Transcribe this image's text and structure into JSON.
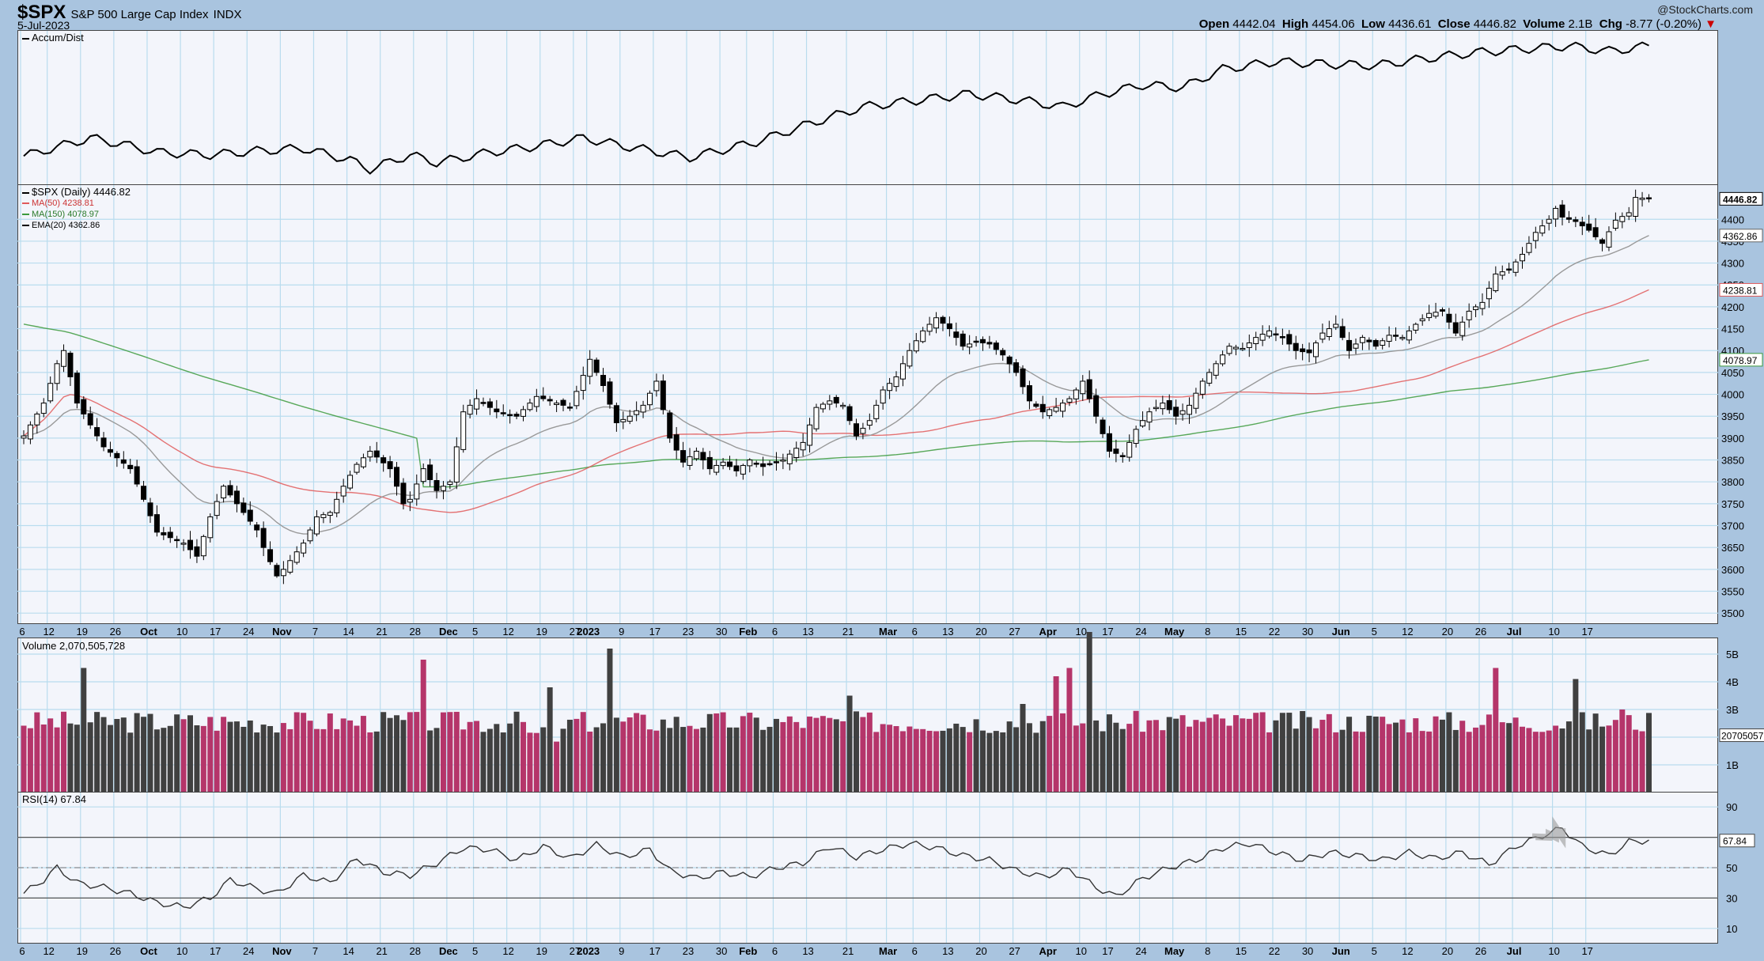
{
  "header": {
    "symbol": "$SPX",
    "name": "S&P 500 Large Cap Index",
    "exchange": "INDX",
    "date": "5-Jul-2023",
    "credit": "@StockCharts.com",
    "open_label": "Open",
    "open": "4442.04",
    "high_label": "High",
    "high": "4454.06",
    "low_label": "Low",
    "low": "4436.61",
    "close_label": "Close",
    "close": "4446.82",
    "volume_label": "Volume",
    "volume": "2.1B",
    "chg_label": "Chg",
    "chg": "-8.77 (-0.20%)",
    "chg_arrow": "▼"
  },
  "legends": {
    "accum": "Accum/Dist",
    "price": "$SPX (Daily) 4446.82",
    "ma50": "MA(50) 4238.81",
    "ma150": "MA(150) 4078.97",
    "ema20": "EMA(20) 4362.86",
    "volume": "Volume 2,070,505,728",
    "rsi": "RSI(14) 67.84"
  },
  "colors": {
    "background": "#a9c4df",
    "panel": "#f3f5fb",
    "grid": "#b9dcee",
    "up_volume": "#b5356a",
    "down_volume": "#404040",
    "ma50": "#e05a5a",
    "ma150": "#3c9a3c",
    "ema20": "#999999"
  },
  "chart_data": {
    "type": "candlestick",
    "symbol": "$SPX",
    "period": "Daily",
    "date_range": [
      "2022-09-06",
      "2023-07-05"
    ],
    "x_ticks": [
      "6",
      "12",
      "19",
      "26",
      "Oct",
      "10",
      "17",
      "24",
      "Nov",
      "7",
      "14",
      "21",
      "28",
      "Dec",
      "5",
      "12",
      "19",
      "27",
      "2023",
      "9",
      "17",
      "23",
      "30",
      "Feb",
      "6",
      "13",
      "21",
      "Mar",
      "6",
      "13",
      "20",
      "27",
      "Apr",
      "10",
      "17",
      "24",
      "May",
      "8",
      "15",
      "22",
      "30",
      "Jun",
      "5",
      "12",
      "20",
      "26",
      "Jul",
      "10",
      "17"
    ],
    "price_axis": {
      "ylim": [
        3475,
        4480
      ],
      "ticks": [
        3500,
        3550,
        3600,
        3650,
        3700,
        3750,
        3800,
        3850,
        3900,
        3950,
        4000,
        4050,
        4100,
        4150,
        4200,
        4250,
        4300,
        4350,
        4400
      ]
    },
    "price_axis_flags": [
      "4446.82",
      "4362.86",
      "4238.81",
      "4078.97"
    ],
    "close_anchors": [
      [
        0,
        3905
      ],
      [
        3,
        3980
      ],
      [
        5,
        4070
      ],
      [
        6,
        4100
      ],
      [
        8,
        3980
      ],
      [
        12,
        3880
      ],
      [
        16,
        3830
      ],
      [
        18,
        3760
      ],
      [
        20,
        3685
      ],
      [
        24,
        3660
      ],
      [
        26,
        3630
      ],
      [
        28,
        3720
      ],
      [
        30,
        3790
      ],
      [
        32,
        3750
      ],
      [
        35,
        3690
      ],
      [
        36,
        3650
      ],
      [
        38,
        3585
      ],
      [
        39,
        3600
      ],
      [
        42,
        3660
      ],
      [
        44,
        3720
      ],
      [
        46,
        3730
      ],
      [
        48,
        3790
      ],
      [
        50,
        3840
      ],
      [
        52,
        3870
      ],
      [
        55,
        3830
      ],
      [
        57,
        3750
      ],
      [
        58,
        3760
      ],
      [
        60,
        3830
      ],
      [
        62,
        3780
      ],
      [
        64,
        3800
      ],
      [
        66,
        3960
      ],
      [
        68,
        3990
      ],
      [
        71,
        3960
      ],
      [
        74,
        3950
      ],
      [
        77,
        3995
      ],
      [
        80,
        3980
      ],
      [
        82,
        3970
      ],
      [
        85,
        4080
      ],
      [
        87,
        4020
      ],
      [
        89,
        3935
      ],
      [
        91,
        3950
      ],
      [
        93,
        3975
      ],
      [
        95,
        4030
      ],
      [
        97,
        3900
      ],
      [
        99,
        3845
      ],
      [
        101,
        3870
      ],
      [
        103,
        3830
      ],
      [
        105,
        3845
      ],
      [
        107,
        3825
      ],
      [
        109,
        3850
      ],
      [
        111,
        3835
      ],
      [
        114,
        3850
      ],
      [
        117,
        3890
      ],
      [
        119,
        3970
      ],
      [
        121,
        3985
      ],
      [
        123,
        3975
      ],
      [
        125,
        3905
      ],
      [
        127,
        3940
      ],
      [
        129,
        4010
      ],
      [
        131,
        4040
      ],
      [
        133,
        4100
      ],
      [
        135,
        4145
      ],
      [
        136,
        4160
      ],
      [
        137,
        4175
      ],
      [
        139,
        4150
      ],
      [
        141,
        4110
      ],
      [
        143,
        4120
      ],
      [
        145,
        4115
      ],
      [
        147,
        4090
      ],
      [
        149,
        4050
      ],
      [
        151,
        3985
      ],
      [
        153,
        3960
      ],
      [
        155,
        3970
      ],
      [
        157,
        3990
      ],
      [
        159,
        4030
      ],
      [
        161,
        3950
      ],
      [
        163,
        3870
      ],
      [
        165,
        3860
      ],
      [
        167,
        3920
      ],
      [
        169,
        3960
      ],
      [
        171,
        3980
      ],
      [
        173,
        3950
      ],
      [
        175,
        3975
      ],
      [
        177,
        4030
      ],
      [
        179,
        4070
      ],
      [
        181,
        4110
      ],
      [
        183,
        4105
      ],
      [
        185,
        4130
      ],
      [
        187,
        4145
      ],
      [
        189,
        4130
      ],
      [
        191,
        4100
      ],
      [
        193,
        4095
      ],
      [
        195,
        4140
      ],
      [
        197,
        4160
      ],
      [
        199,
        4100
      ],
      [
        201,
        4130
      ],
      [
        203,
        4110
      ],
      [
        205,
        4135
      ],
      [
        207,
        4130
      ],
      [
        209,
        4160
      ],
      [
        211,
        4185
      ],
      [
        213,
        4190
      ],
      [
        215,
        4140
      ],
      [
        217,
        4190
      ],
      [
        219,
        4210
      ],
      [
        221,
        4275
      ],
      [
        223,
        4285
      ],
      [
        225,
        4320
      ],
      [
        227,
        4370
      ],
      [
        229,
        4400
      ],
      [
        230,
        4425
      ],
      [
        231,
        4405
      ],
      [
        233,
        4395
      ],
      [
        235,
        4375
      ],
      [
        237,
        4345
      ],
      [
        239,
        4398
      ],
      [
        241,
        4415
      ],
      [
        242,
        4450
      ],
      [
        244,
        4447
      ]
    ],
    "ma50": {
      "last": 4238.81
    },
    "ma150": {
      "last": 4078.97
    },
    "ema20": {
      "last": 4362.86
    },
    "volume": {
      "ylim": [
        0,
        5.6
      ],
      "ticks": [
        "1B",
        "2B",
        "3B",
        "4B",
        "5B"
      ],
      "last": "2070505728",
      "spikes": [
        [
          9,
          4.5
        ],
        [
          60,
          4.8
        ],
        [
          79,
          3.8
        ],
        [
          88,
          5.2
        ],
        [
          124,
          3.5
        ],
        [
          150,
          3.2
        ],
        [
          155,
          4.2
        ],
        [
          157,
          4.5
        ],
        [
          160,
          5.8
        ],
        [
          221,
          4.5
        ],
        [
          233,
          4.1
        ],
        [
          240,
          3.0
        ]
      ]
    },
    "accum_dist": {
      "anchors": [
        [
          0,
          1.5
        ],
        [
          5,
          2.2
        ],
        [
          10,
          2.9
        ],
        [
          15,
          2.4
        ],
        [
          20,
          1.8
        ],
        [
          28,
          1.6
        ],
        [
          35,
          1.9
        ],
        [
          42,
          2.1
        ],
        [
          49,
          1.2
        ],
        [
          52,
          0.5
        ],
        [
          58,
          1.6
        ],
        [
          62,
          1.0
        ],
        [
          70,
          1.8
        ],
        [
          76,
          2.2
        ],
        [
          84,
          2.9
        ],
        [
          91,
          2.2
        ],
        [
          100,
          1.4
        ],
        [
          110,
          2.6
        ],
        [
          118,
          4.0
        ],
        [
          126,
          5.3
        ],
        [
          134,
          5.8
        ],
        [
          142,
          6.3
        ],
        [
          150,
          5.8
        ],
        [
          156,
          5.3
        ],
        [
          162,
          6.3
        ],
        [
          168,
          7.0
        ],
        [
          174,
          6.8
        ],
        [
          180,
          8.2
        ],
        [
          188,
          8.8
        ],
        [
          196,
          8.6
        ],
        [
          203,
          8.5
        ],
        [
          210,
          9.0
        ],
        [
          218,
          9.5
        ],
        [
          226,
          9.8
        ],
        [
          232,
          10.0
        ],
        [
          238,
          9.6
        ],
        [
          244,
          10.0
        ]
      ]
    },
    "rsi": {
      "ylim": [
        0,
        100
      ],
      "ticks": [
        10,
        30,
        50,
        70,
        90
      ],
      "overbought": 70,
      "oversold": 30,
      "midline": 50,
      "last": 67.84,
      "anchors": [
        [
          0,
          33
        ],
        [
          3,
          42
        ],
        [
          5,
          50
        ],
        [
          8,
          40
        ],
        [
          12,
          37
        ],
        [
          16,
          33
        ],
        [
          20,
          27
        ],
        [
          24,
          24
        ],
        [
          28,
          30
        ],
        [
          31,
          42
        ],
        [
          35,
          36
        ],
        [
          38,
          33
        ],
        [
          42,
          45
        ],
        [
          46,
          40
        ],
        [
          50,
          56
        ],
        [
          54,
          47
        ],
        [
          58,
          45
        ],
        [
          62,
          53
        ],
        [
          66,
          63
        ],
        [
          70,
          62
        ],
        [
          74,
          55
        ],
        [
          78,
          64
        ],
        [
          82,
          56
        ],
        [
          86,
          65
        ],
        [
          90,
          57
        ],
        [
          94,
          62
        ],
        [
          97,
          48
        ],
        [
          101,
          43
        ],
        [
          105,
          47
        ],
        [
          109,
          44
        ],
        [
          113,
          50
        ],
        [
          117,
          53
        ],
        [
          121,
          64
        ],
        [
          125,
          57
        ],
        [
          129,
          62
        ],
        [
          133,
          66
        ],
        [
          137,
          63
        ],
        [
          141,
          58
        ],
        [
          145,
          55
        ],
        [
          149,
          48
        ],
        [
          153,
          44
        ],
        [
          157,
          49
        ],
        [
          161,
          37
        ],
        [
          164,
          31
        ],
        [
          168,
          43
        ],
        [
          172,
          50
        ],
        [
          176,
          55
        ],
        [
          180,
          63
        ],
        [
          184,
          66
        ],
        [
          188,
          60
        ],
        [
          192,
          55
        ],
        [
          196,
          60
        ],
        [
          200,
          58
        ],
        [
          204,
          55
        ],
        [
          208,
          60
        ],
        [
          212,
          56
        ],
        [
          216,
          60
        ],
        [
          220,
          52
        ],
        [
          224,
          64
        ],
        [
          228,
          71
        ],
        [
          231,
          76
        ],
        [
          234,
          64
        ],
        [
          238,
          58
        ],
        [
          241,
          67
        ],
        [
          244,
          68
        ]
      ]
    }
  }
}
